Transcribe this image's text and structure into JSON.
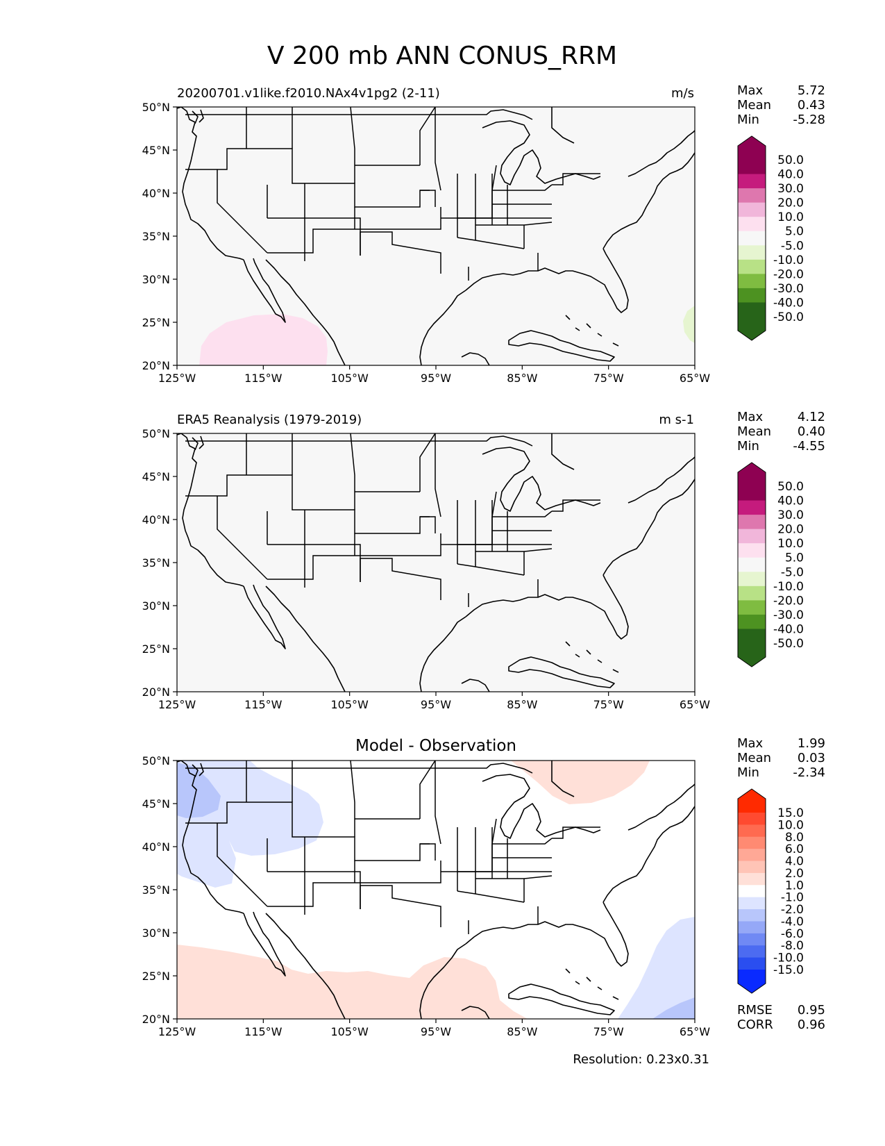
{
  "title": "V 200 mb ANN CONUS_RRM",
  "axis": {
    "lon_ticks": [
      "125°W",
      "115°W",
      "105°W",
      "95°W",
      "85°W",
      "75°W",
      "65°W"
    ],
    "lat_ticks": [
      "50°N",
      "45°N",
      "40°N",
      "35°N",
      "30°N",
      "25°N",
      "20°N"
    ]
  },
  "panels": [
    {
      "left_title": "20200701.v1like.f2010.NAx4v1pg2 (2-11)",
      "center_title": "",
      "units": "m/s",
      "stats": [
        {
          "label": "Max",
          "value": "5.72"
        },
        {
          "label": "Mean",
          "value": "0.43"
        },
        {
          "label": "Min",
          "value": "-5.28"
        }
      ],
      "colorbar": {
        "labels": [
          "50.0",
          "40.0",
          "30.0",
          "20.0",
          "10.0",
          "5.0",
          "-5.0",
          "-10.0",
          "-20.0",
          "-30.0",
          "-40.0",
          "-50.0"
        ],
        "colors": [
          "#8e0152",
          "#c51b7d",
          "#de77ae",
          "#f1b6da",
          "#fde0ef",
          "#f7f7f7",
          "#e6f5d0",
          "#b8e186",
          "#7fbc41",
          "#4d9221",
          "#276419"
        ],
        "extend_top": "#8e0152",
        "extend_bottom": "#276419"
      }
    },
    {
      "left_title": "ERA5 Reanalysis (1979-2019)",
      "center_title": "",
      "units": "m s-1",
      "stats": [
        {
          "label": "Max",
          "value": "4.12"
        },
        {
          "label": "Mean",
          "value": "0.40"
        },
        {
          "label": "Min",
          "value": "-4.55"
        }
      ],
      "colorbar": {
        "labels": [
          "50.0",
          "40.0",
          "30.0",
          "20.0",
          "10.0",
          "5.0",
          "-5.0",
          "-10.0",
          "-20.0",
          "-30.0",
          "-40.0",
          "-50.0"
        ],
        "colors": [
          "#8e0152",
          "#c51b7d",
          "#de77ae",
          "#f1b6da",
          "#fde0ef",
          "#f7f7f7",
          "#e6f5d0",
          "#b8e186",
          "#7fbc41",
          "#4d9221",
          "#276419"
        ],
        "extend_top": "#8e0152",
        "extend_bottom": "#276419"
      }
    },
    {
      "left_title": "",
      "center_title": "Model - Observation",
      "units": "",
      "stats": [
        {
          "label": "Max",
          "value": "1.99"
        },
        {
          "label": "Mean",
          "value": "0.03"
        },
        {
          "label": "Min",
          "value": "-2.34"
        }
      ],
      "colorbar": {
        "labels": [
          "15.0",
          "10.0",
          "8.0",
          "6.0",
          "4.0",
          "2.0",
          "1.0",
          "-1.0",
          "-2.0",
          "-4.0",
          "-6.0",
          "-8.0",
          "-10.0",
          "-15.0"
        ],
        "colors": [
          "#ff4a30",
          "#ff6a50",
          "#ff8a72",
          "#ffa896",
          "#ffc4b6",
          "#ffe0d8",
          "#ffffff",
          "#dde4ff",
          "#b8c6fb",
          "#95a8f7",
          "#7089f4",
          "#4c6bf1",
          "#2a4ef0"
        ],
        "extend_top": "#ff2a00",
        "extend_bottom": "#0a2aff"
      },
      "extra_stats": [
        {
          "label": "RMSE",
          "value": "0.95"
        },
        {
          "label": "CORR",
          "value": "0.96"
        }
      ]
    }
  ],
  "footer": {
    "resolution": "Resolution: 0.23x0.31"
  }
}
